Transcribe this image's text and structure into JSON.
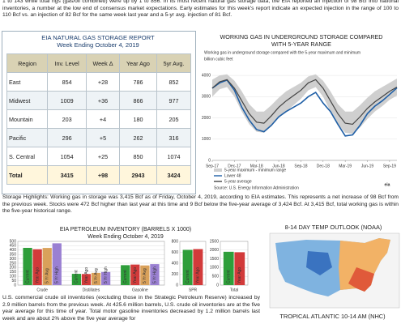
{
  "intro": "1 to 143 while total rigs (gas/oil combined) were up by 1 to 856. In its most recent natural gas storage data, the EIA reported an injection of 98 Bcf into national inventories, a number at the low end of consensus market expectations. Early estimates for this week's report indicate an expected injection in the range of 100 to 110 Bcf vs. an injection of 82 Bcf for the same week last year and a 5-yr avg. injection of 81 Bcf.",
  "storage_report": {
    "title": "EIA NATURAL GAS STORAGE REPORT",
    "subtitle": "Week Ending October 4, 2019",
    "table": {
      "header": [
        "Region",
        "Inv. Level",
        "Week Δ",
        "Year Ago",
        "5yr Avg."
      ],
      "rows": [
        [
          "East",
          854,
          "+28",
          786,
          852
        ],
        [
          "Midwest",
          1009,
          "+36",
          866,
          977
        ],
        [
          "Mountain",
          203,
          "+4",
          180,
          205
        ],
        [
          "Pacific",
          296,
          "+5",
          262,
          316
        ],
        [
          "S. Central",
          1054,
          "+25",
          850,
          1074
        ],
        [
          "Total",
          3415,
          "+98",
          2943,
          3424
        ]
      ]
    }
  },
  "highlights": "Storage Highlights: Working gas in storage was 3,415 Bcf as of Friday, October 4, 2019, according to EIA estimates. This represents a net increase of 98 Bcf from the previous week. Stocks were 472 Bcf higher than last year at this time and 9 Bcf below the five-year average of 3,424 Bcf. At 3,415 Bcf, total working gas is within the five-year historical range.",
  "petroleum_paragraph": "U.S. commercial crude oil inventories (excluding those in the Strategic Petroleum Reserve) increased by 2.9 million barrels from the previous week. At 425.6 million barrels, U.S. crude oil inventories are at the five year average for this time of year. Total motor gasoline inventories decreased by 1.2 million barrels last week and are about 2% above the five year average for",
  "outlook_title": "8-14 DAY TEMP OUTLOOK (NOAA)",
  "tropical_title": "TROPICAL ATLANTIC 10-14 AM (NHC)",
  "chart_data": [
    {
      "type": "line",
      "title": "WORKING GAS IN UNDERGROUND STORAGE COMPARED WITH 5-YEAR RANGE",
      "subtitle": "Working gas in underground storage compared with the 5-year maximum and minimum",
      "y_label": "billion cubic feet",
      "source": "Source: U.S. Energy Information Administration",
      "logo": "eia",
      "categories": [
        "Sep-17",
        null,
        null,
        "Dec-17",
        null,
        null,
        "Mar-18",
        null,
        null,
        "Jun-18",
        null,
        null,
        "Sep-18",
        null,
        null,
        "Dec-18",
        null,
        null,
        "Mar-19",
        null,
        null,
        "Jun-19",
        null,
        null,
        "Sep-19",
        null
      ],
      "ylim": [
        0,
        4500
      ],
      "yticks": [
        0,
        1000,
        2000,
        3000,
        4000
      ],
      "grid": true,
      "series": [
        {
          "name": "5-year maximum - minimum range",
          "color": "#cfcfcf",
          "values": [
            3800,
            4000,
            4050,
            3750,
            3250,
            2650,
            2300,
            2300,
            2600,
            2950,
            3250,
            3450,
            3650,
            3950,
            4050,
            3750,
            3250,
            2650,
            2300,
            2300,
            2600,
            2950,
            3250,
            3450,
            3650,
            3850
          ],
          "lows": [
            3000,
            3350,
            3450,
            3000,
            2300,
            1700,
            1350,
            1300,
            1600,
            2000,
            2300,
            2600,
            2900,
            3300,
            3450,
            3000,
            2300,
            1700,
            1300,
            1250,
            1550,
            1950,
            2300,
            2550,
            2850,
            3050
          ]
        },
        {
          "name": "Lower 48",
          "color": "#1f5fa6",
          "values": [
            3400,
            3650,
            3780,
            3300,
            2500,
            1900,
            1450,
            1350,
            1650,
            2050,
            2300,
            2500,
            2700,
            3000,
            3200,
            2700,
            2300,
            1700,
            1150,
            1200,
            1650,
            2200,
            2550,
            2800,
            3100,
            3415
          ]
        },
        {
          "name": "5-year average",
          "color": "#444444",
          "values": [
            3400,
            3700,
            3800,
            3400,
            2800,
            2200,
            1800,
            1750,
            2100,
            2500,
            2800,
            3050,
            3300,
            3650,
            3800,
            3400,
            2800,
            2200,
            1750,
            1700,
            2050,
            2450,
            2750,
            3000,
            3250,
            3450
          ]
        }
      ]
    },
    {
      "type": "bar",
      "title": "EIA PETROLEUM INVENTORY (BARRELS X 1000)",
      "subtitle": "Week Ending October 4, 2019",
      "categories": [
        "Crude",
        "Distillates",
        "Gasoline"
      ],
      "ylim": [
        0,
        500
      ],
      "yticks": [
        0,
        50,
        100,
        150,
        200,
        250,
        300,
        350,
        400,
        450,
        500
      ],
      "grid": true,
      "series": [
        {
          "name": "Current",
          "color": "#2e9e3a",
          "values": [
            426,
            129,
            228
          ]
        },
        {
          "name": "Year Ago",
          "color": "#d23a3a",
          "values": [
            410,
            127,
            235
          ]
        },
        {
          "name": "5 Yr Avg",
          "color": "#d9a15a",
          "values": [
            425,
            140,
            225
          ]
        },
        {
          "name": "5 Yr High",
          "color": "#9a80d2",
          "values": [
            478,
            150,
            240
          ]
        }
      ]
    },
    {
      "type": "bar",
      "categories": [
        "SPR"
      ],
      "ylim": [
        0,
        800
      ],
      "yticks": [
        0,
        200,
        400,
        600,
        800
      ],
      "grid": true,
      "series": [
        {
          "name": "Current",
          "color": "#2e9e3a",
          "values": [
            645
          ]
        },
        {
          "name": "Year Ago",
          "color": "#d23a3a",
          "values": [
            659
          ]
        }
      ]
    },
    {
      "type": "bar",
      "categories": [
        "Total"
      ],
      "ylim": [
        0,
        2500
      ],
      "yticks": [
        0,
        500,
        1000,
        1500,
        2000,
        2500
      ],
      "grid": true,
      "series": [
        {
          "name": "Current",
          "color": "#2e9e3a",
          "values": [
            1906
          ]
        },
        {
          "name": "Year Ago",
          "color": "#d23a3a",
          "values": [
            1880
          ]
        }
      ]
    }
  ]
}
